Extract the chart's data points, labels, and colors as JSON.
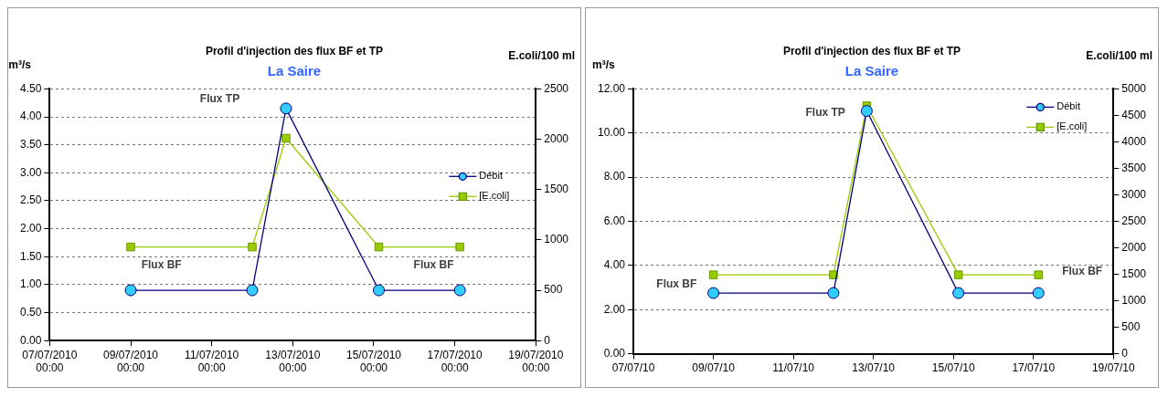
{
  "chart_data": [
    {
      "type": "line",
      "title": "Profil d'injection des flux BF et TP",
      "subtitle": "La Saire",
      "ylabel": "m³/s",
      "y2label": "E.coli/100 ml",
      "x": [
        "2010-07-09T00:00",
        "2010-07-12T00:00",
        "2010-07-12T20:00",
        "2010-07-15T03:00",
        "2010-07-17T03:00"
      ],
      "series": [
        {
          "name": "Débit",
          "color": "#000080",
          "marker": "circle",
          "values": [
            0.9,
            0.9,
            4.15,
            0.9,
            0.9
          ]
        },
        {
          "name": "[E.coli]",
          "color": "#99cc00",
          "marker": "square",
          "axis": "y2",
          "values": [
            930,
            930,
            2010,
            930,
            930
          ]
        }
      ],
      "xlim": [
        "2010-07-07",
        "2010-07-19"
      ],
      "xticks": [
        {
          "value": "2010-07-07",
          "label": "07/07/2010 00:00"
        },
        {
          "value": "2010-07-09",
          "label": "09/07/2010 00:00"
        },
        {
          "value": "2010-07-11",
          "label": "11/07/2010 00:00"
        },
        {
          "value": "2010-07-13",
          "label": "13/07/2010 00:00"
        },
        {
          "value": "2010-07-15",
          "label": "15/07/2010 00:00"
        },
        {
          "value": "2010-07-17",
          "label": "17/07/2010 00:00"
        },
        {
          "value": "2010-07-19",
          "label": "19/07/2010 00:00"
        }
      ],
      "ylim": [
        0,
        4.5
      ],
      "yticks": [
        {
          "value": 0,
          "label": "0.00"
        },
        {
          "value": 0.5,
          "label": "0.50"
        },
        {
          "value": 1,
          "label": "1.00"
        },
        {
          "value": 1.5,
          "label": "1.50"
        },
        {
          "value": 2,
          "label": "2.00"
        },
        {
          "value": 2.5,
          "label": "2.50"
        },
        {
          "value": 3,
          "label": "3.00"
        },
        {
          "value": 3.5,
          "label": "3.50"
        },
        {
          "value": 4,
          "label": "4.00"
        },
        {
          "value": 4.5,
          "label": "4.50"
        }
      ],
      "y2lim": [
        0,
        2500
      ],
      "y2ticks": [
        0,
        500,
        1000,
        1500,
        2000,
        2500
      ],
      "grid": "y",
      "legend": "right",
      "line_style": "solid",
      "annotations": [
        "Flux TP",
        "Flux BF",
        "Flux BF"
      ]
    },
    {
      "type": "line",
      "title": "Profil d'injection des flux BF et TP",
      "subtitle": "La Saire",
      "ylabel": "m³/s",
      "y2label": "E.coli/100 ml",
      "x": [
        "2010-07-09T00:00",
        "2010-07-12T00:00",
        "2010-07-12T20:00",
        "2010-07-15T03:00",
        "2010-07-17T03:00"
      ],
      "series": [
        {
          "name": "Débit",
          "color": "#000080",
          "marker": "circle",
          "values": [
            2.75,
            2.75,
            11.0,
            2.75,
            2.75
          ]
        },
        {
          "name": "[E.coli]",
          "color": "#99cc00",
          "marker": "square",
          "axis": "y2",
          "values": [
            1490,
            1490,
            4680,
            1490,
            1490
          ]
        }
      ],
      "xlim": [
        "2010-07-07",
        "2010-07-19"
      ],
      "xticks": [
        {
          "value": "2010-07-07",
          "label": "07/07/10"
        },
        {
          "value": "2010-07-09",
          "label": "09/07/10"
        },
        {
          "value": "2010-07-11",
          "label": "11/07/10"
        },
        {
          "value": "2010-07-13",
          "label": "13/07/10"
        },
        {
          "value": "2010-07-15",
          "label": "15/07/10"
        },
        {
          "value": "2010-07-17",
          "label": "17/07/10"
        },
        {
          "value": "2010-07-19",
          "label": "19/07/10"
        }
      ],
      "ylim": [
        0,
        12
      ],
      "yticks": [
        {
          "value": 0,
          "label": "0.00"
        },
        {
          "value": 2,
          "label": "2.00"
        },
        {
          "value": 4,
          "label": "4.00"
        },
        {
          "value": 6,
          "label": "6.00"
        },
        {
          "value": 8,
          "label": "8.00"
        },
        {
          "value": 10,
          "label": "10.00"
        },
        {
          "value": 12,
          "label": "12.00"
        }
      ],
      "y2lim": [
        0,
        5000
      ],
      "y2ticks": [
        0,
        500,
        1000,
        1500,
        2000,
        2500,
        3000,
        3500,
        4000,
        4500,
        5000
      ],
      "grid": "y",
      "legend": "top right",
      "line_style": "solid",
      "annotations": [
        "Flux TP",
        "Flux BF",
        "Flux BF"
      ]
    }
  ]
}
